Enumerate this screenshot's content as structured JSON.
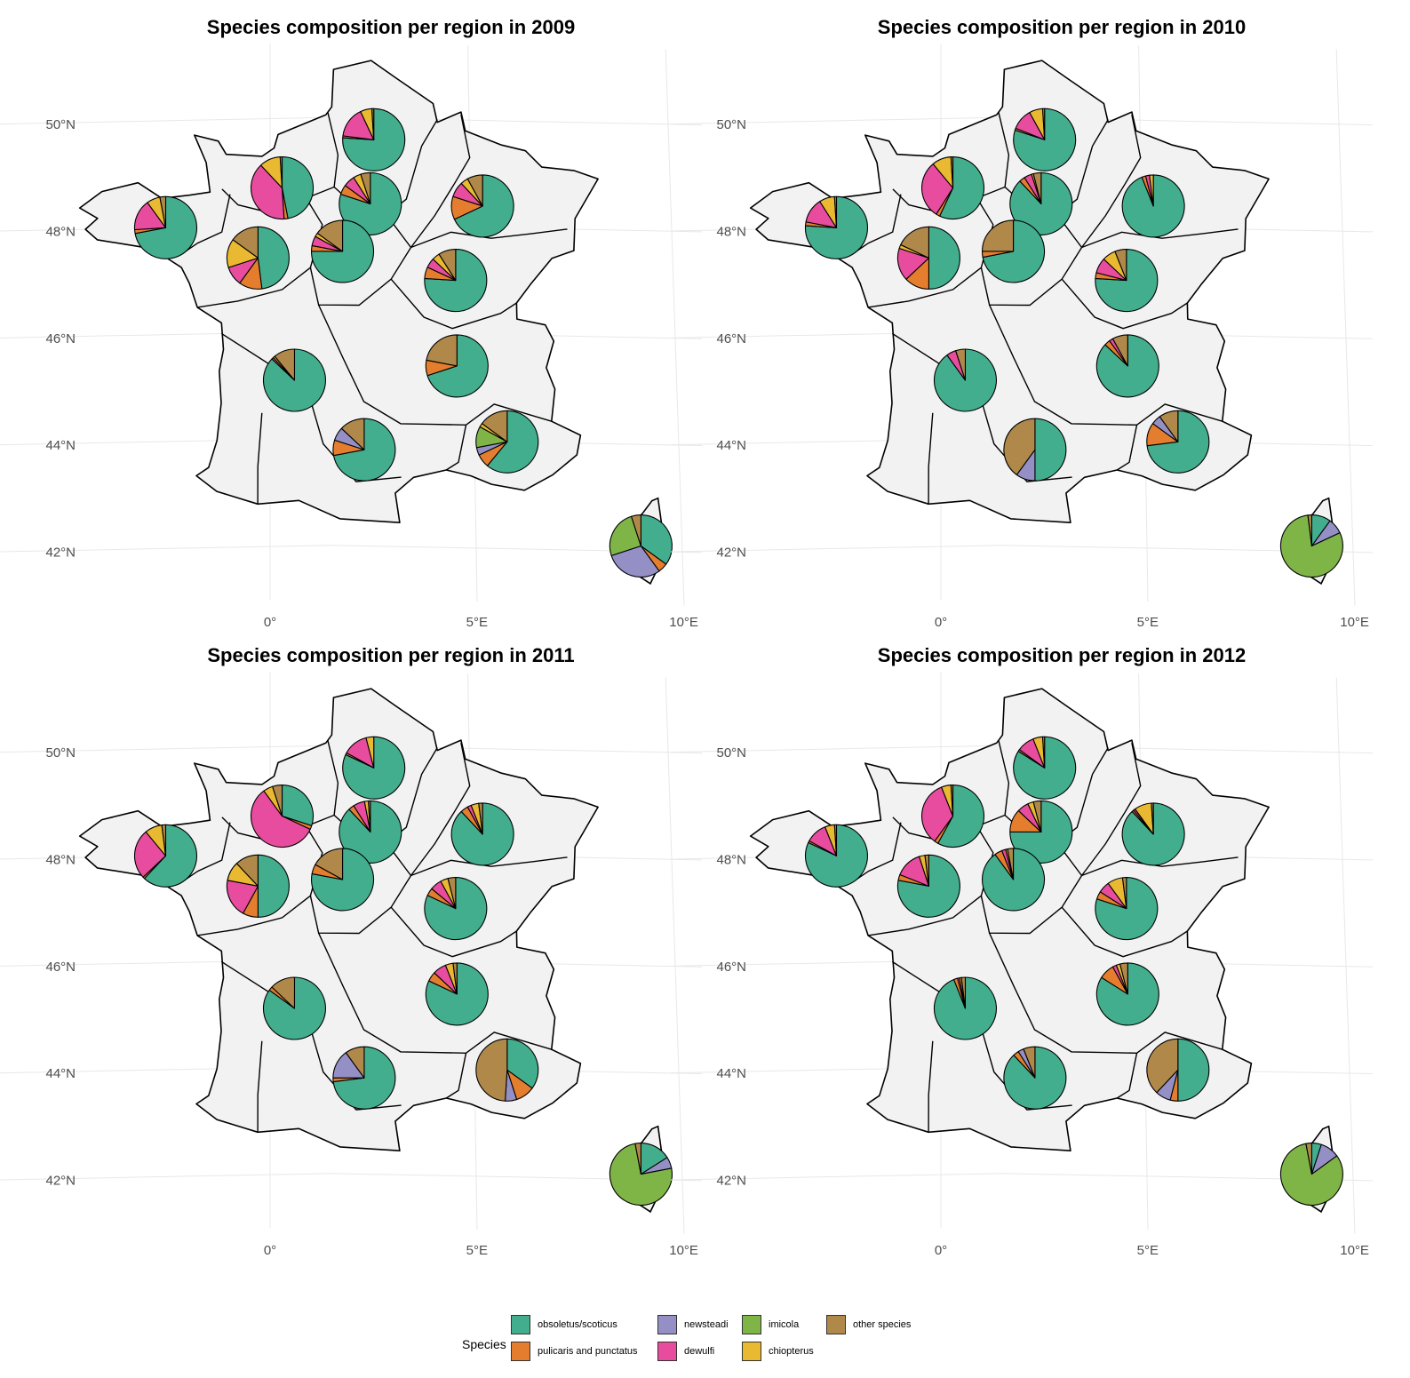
{
  "axes": {
    "lat_labels": [
      "50°N",
      "48°N",
      "46°N",
      "44°N",
      "42°N"
    ],
    "lon_labels": [
      "0°",
      "5°E",
      "10°E"
    ]
  },
  "species": [
    {
      "name": "obsoletus/scoticus",
      "color": "#43AE8E"
    },
    {
      "name": "pulicaris and punctatus",
      "color": "#E47E2E"
    },
    {
      "name": "newsteadi",
      "color": "#9490C6"
    },
    {
      "name": "dewulfi",
      "color": "#E84C9E"
    },
    {
      "name": "imicola",
      "color": "#7FB547"
    },
    {
      "name": "chiopterus",
      "color": "#EAB932"
    },
    {
      "name": "other species",
      "color": "#B0894A"
    }
  ],
  "legend": {
    "title": "Species",
    "items": [
      "obsoletus/scoticus",
      "pulicaris and punctatus",
      "newsteadi",
      "dewulfi",
      "imicola",
      "chiopterus",
      "other species"
    ]
  },
  "chart_data": [
    {
      "type": "pie",
      "title": "Species composition per region in 2009",
      "series_order": [
        "obsoletus/scoticus",
        "pulicaris and punctatus",
        "newsteadi",
        "dewulfi",
        "imicola",
        "chiopterus",
        "other species"
      ],
      "regions": [
        {
          "lon": 2.6,
          "lat": 49.6,
          "values": [
            76,
            1,
            0,
            16,
            0,
            6,
            1
          ]
        },
        {
          "lon": 0.3,
          "lat": 48.7,
          "values": [
            47,
            2,
            0,
            39,
            0,
            11,
            1
          ]
        },
        {
          "lon": 2.5,
          "lat": 48.4,
          "values": [
            80,
            5,
            0,
            6,
            0,
            4,
            5
          ]
        },
        {
          "lon": 5.3,
          "lat": 48.4,
          "values": [
            68,
            12,
            0,
            8,
            0,
            4,
            8
          ]
        },
        {
          "lon": -2.6,
          "lat": 48.0,
          "values": [
            72,
            2,
            0,
            16,
            0,
            7,
            3
          ]
        },
        {
          "lon": -0.3,
          "lat": 47.4,
          "values": [
            48,
            12,
            0,
            10,
            0,
            15,
            15
          ]
        },
        {
          "lon": 1.8,
          "lat": 47.5,
          "values": [
            75,
            3,
            0,
            5,
            0,
            2,
            15
          ]
        },
        {
          "lon": 4.6,
          "lat": 47.0,
          "values": [
            76,
            6,
            0,
            5,
            0,
            4,
            9
          ]
        },
        {
          "lon": 0.6,
          "lat": 45.1,
          "values": [
            87,
            0,
            0,
            1,
            0,
            1,
            11
          ]
        },
        {
          "lon": 4.6,
          "lat": 45.4,
          "values": [
            70,
            8,
            0,
            0,
            0,
            0,
            22
          ]
        },
        {
          "lon": 2.3,
          "lat": 43.8,
          "values": [
            72,
            8,
            7,
            0,
            0,
            0,
            13
          ]
        },
        {
          "lon": 5.8,
          "lat": 44.0,
          "values": [
            61,
            7,
            4,
            0,
            11,
            2,
            15
          ]
        },
        {
          "lon": 9.0,
          "lat": 42.1,
          "values": [
            35,
            5,
            30,
            0,
            25,
            0,
            5
          ]
        }
      ]
    },
    {
      "type": "pie",
      "title": "Species composition per region in 2010",
      "series_order": [
        "obsoletus/scoticus",
        "pulicaris and punctatus",
        "newsteadi",
        "dewulfi",
        "imicola",
        "chiopterus",
        "other species"
      ],
      "regions": [
        {
          "lon": 2.6,
          "lat": 49.6,
          "values": [
            80,
            1,
            0,
            11,
            0,
            7,
            1
          ]
        },
        {
          "lon": 0.3,
          "lat": 48.7,
          "values": [
            57,
            2,
            0,
            30,
            0,
            10,
            1
          ]
        },
        {
          "lon": 2.5,
          "lat": 48.4,
          "values": [
            88,
            3,
            0,
            4,
            0,
            1,
            4
          ]
        },
        {
          "lon": 5.3,
          "lat": 48.4,
          "values": [
            94,
            2,
            0,
            2,
            0,
            2,
            0
          ]
        },
        {
          "lon": -2.6,
          "lat": 48.0,
          "values": [
            76,
            2,
            0,
            13,
            0,
            8,
            1
          ]
        },
        {
          "lon": -0.3,
          "lat": 47.4,
          "values": [
            50,
            13,
            0,
            17,
            0,
            2,
            18
          ]
        },
        {
          "lon": 1.8,
          "lat": 47.5,
          "values": [
            72,
            3,
            0,
            0,
            0,
            0,
            25
          ]
        },
        {
          "lon": 4.6,
          "lat": 47.0,
          "values": [
            76,
            3,
            0,
            8,
            0,
            7,
            6
          ]
        },
        {
          "lon": 0.6,
          "lat": 45.1,
          "values": [
            90,
            0,
            0,
            5,
            0,
            0,
            5
          ]
        },
        {
          "lon": 4.6,
          "lat": 45.4,
          "values": [
            87,
            3,
            0,
            2,
            0,
            0,
            8
          ]
        },
        {
          "lon": 2.3,
          "lat": 43.8,
          "values": [
            50,
            0,
            10,
            0,
            0,
            0,
            40
          ]
        },
        {
          "lon": 5.8,
          "lat": 44.0,
          "values": [
            73,
            12,
            5,
            0,
            0,
            0,
            10
          ]
        },
        {
          "lon": 9.0,
          "lat": 42.1,
          "values": [
            10,
            0,
            8,
            0,
            80,
            0,
            2
          ]
        }
      ]
    },
    {
      "type": "pie",
      "title": "Species composition per region in 2011",
      "series_order": [
        "obsoletus/scoticus",
        "pulicaris and punctatus",
        "newsteadi",
        "dewulfi",
        "imicola",
        "chiopterus",
        "other species"
      ],
      "regions": [
        {
          "lon": 2.6,
          "lat": 49.6,
          "values": [
            82,
            1,
            0,
            13,
            0,
            4,
            0
          ]
        },
        {
          "lon": 0.3,
          "lat": 48.7,
          "values": [
            30,
            2,
            0,
            58,
            0,
            5,
            5
          ]
        },
        {
          "lon": 2.5,
          "lat": 48.4,
          "values": [
            88,
            3,
            0,
            6,
            0,
            2,
            1
          ]
        },
        {
          "lon": 5.3,
          "lat": 48.4,
          "values": [
            88,
            4,
            0,
            2,
            0,
            4,
            2
          ]
        },
        {
          "lon": -2.6,
          "lat": 48.0,
          "values": [
            62,
            1,
            0,
            26,
            0,
            9,
            2
          ]
        },
        {
          "lon": -0.3,
          "lat": 47.4,
          "values": [
            50,
            8,
            0,
            20,
            0,
            10,
            12
          ]
        },
        {
          "lon": 1.8,
          "lat": 47.5,
          "values": [
            78,
            5,
            0,
            0,
            0,
            0,
            17
          ]
        },
        {
          "lon": 4.6,
          "lat": 47.0,
          "values": [
            82,
            4,
            0,
            6,
            0,
            4,
            4
          ]
        },
        {
          "lon": 0.6,
          "lat": 45.1,
          "values": [
            85,
            2,
            0,
            0,
            0,
            0,
            13
          ]
        },
        {
          "lon": 4.6,
          "lat": 45.4,
          "values": [
            82,
            5,
            0,
            7,
            0,
            4,
            2
          ]
        },
        {
          "lon": 2.3,
          "lat": 43.8,
          "values": [
            73,
            2,
            15,
            0,
            0,
            0,
            10
          ]
        },
        {
          "lon": 5.8,
          "lat": 44.0,
          "values": [
            35,
            10,
            6,
            0,
            0,
            0,
            49
          ]
        },
        {
          "lon": 9.0,
          "lat": 42.1,
          "values": [
            16,
            0,
            6,
            0,
            75,
            0,
            3
          ]
        }
      ]
    },
    {
      "type": "pie",
      "title": "Species composition per region in 2012",
      "series_order": [
        "obsoletus/scoticus",
        "pulicaris and punctatus",
        "newsteadi",
        "dewulfi",
        "imicola",
        "chiopterus",
        "other species"
      ],
      "regions": [
        {
          "lon": 2.6,
          "lat": 49.6,
          "values": [
            84,
            1,
            0,
            9,
            0,
            5,
            1
          ]
        },
        {
          "lon": 0.3,
          "lat": 48.7,
          "values": [
            58,
            2,
            0,
            34,
            0,
            5,
            1
          ]
        },
        {
          "lon": 2.5,
          "lat": 48.4,
          "values": [
            75,
            12,
            0,
            6,
            0,
            3,
            4
          ]
        },
        {
          "lon": 5.3,
          "lat": 48.4,
          "values": [
            88,
            1,
            0,
            1,
            0,
            9,
            1
          ]
        },
        {
          "lon": -2.6,
          "lat": 48.0,
          "values": [
            82,
            1,
            0,
            11,
            0,
            5,
            1
          ]
        },
        {
          "lon": -0.3,
          "lat": 47.4,
          "values": [
            78,
            3,
            0,
            14,
            0,
            3,
            2
          ]
        },
        {
          "lon": 1.8,
          "lat": 47.5,
          "values": [
            90,
            4,
            0,
            2,
            0,
            1,
            3
          ]
        },
        {
          "lon": 4.6,
          "lat": 47.0,
          "values": [
            80,
            4,
            0,
            6,
            0,
            8,
            2
          ]
        },
        {
          "lon": 0.6,
          "lat": 45.1,
          "values": [
            94,
            2,
            0,
            1,
            0,
            1,
            2
          ]
        },
        {
          "lon": 4.6,
          "lat": 45.4,
          "values": [
            84,
            8,
            0,
            2,
            0,
            2,
            4
          ]
        },
        {
          "lon": 2.3,
          "lat": 43.8,
          "values": [
            88,
            3,
            3,
            0,
            0,
            0,
            6
          ]
        },
        {
          "lon": 5.8,
          "lat": 44.0,
          "values": [
            50,
            4,
            8,
            0,
            0,
            0,
            38
          ]
        },
        {
          "lon": 9.0,
          "lat": 42.1,
          "values": [
            5,
            0,
            10,
            0,
            82,
            0,
            3
          ]
        }
      ]
    }
  ]
}
